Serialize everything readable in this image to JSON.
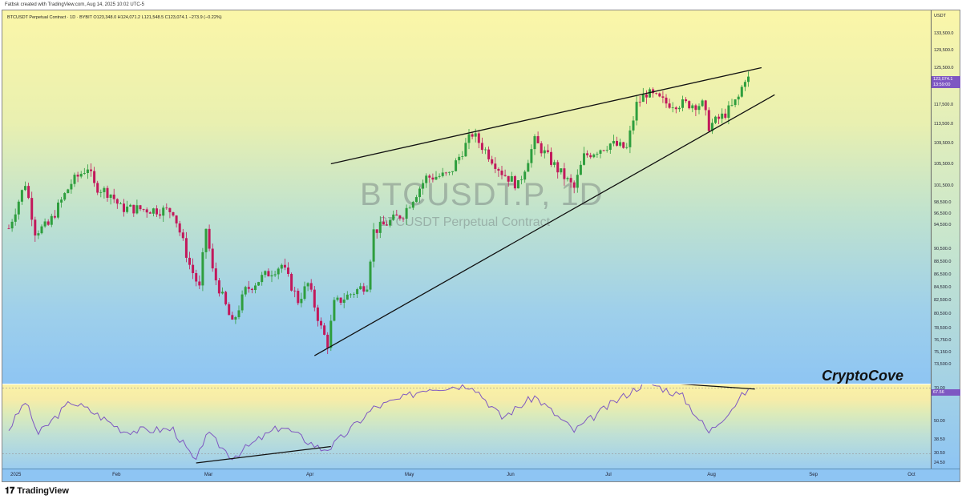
{
  "header": {
    "created": "Fatbsk created with TradingView.com, Aug 14, 2025 10:02 UTC-5"
  },
  "legend": "BTCUSDT Perpetual Contract · 1D · BYBIT  O123,348.0  H124,071.2  L121,548.5  C123,074.1  −273.9 (−0.22%)",
  "watermark": {
    "symbol": "BTCUSDT.P, 1D",
    "name": "BTCUSDT Perpetual Contract"
  },
  "brand": "CryptoCove",
  "footer": "TradingView",
  "colors": {
    "up": "#2e9e3e",
    "down": "#c2185b",
    "rsi": "#7e57c2",
    "badge": "#7e57c2"
  },
  "chart_data": [
    {
      "type": "candlestick",
      "symbol": "BTCUSDT.P",
      "interval": "1D",
      "scale": "log",
      "currency": "USDT",
      "last_price": "123,074.1",
      "countdown": "13:59:00",
      "price_ticks": [
        "133,500.0",
        "129,500.0",
        "125,500.0",
        "117,500.0",
        "113,500.0",
        "109,500.0",
        "105,500.0",
        "101,500.0",
        "98,500.0",
        "96,500.0",
        "94,500.0",
        "90,500.0",
        "88,500.0",
        "86,500.0",
        "84,500.0",
        "82,500.0",
        "80,500.0",
        "78,500.0",
        "76,750.0",
        "75,150.0",
        "73,500.0"
      ],
      "time_ticks": [
        "2025",
        "Feb",
        "Mar",
        "Apr",
        "May",
        "Jun",
        "Jul",
        "Aug",
        "Sep",
        "Oct"
      ],
      "close_path": [
        [
          "2025-01-01",
          94000
        ],
        [
          "2025-01-06",
          102000
        ],
        [
          "2025-01-09",
          93500
        ],
        [
          "2025-01-13",
          94500
        ],
        [
          "2025-01-20",
          102000
        ],
        [
          "2025-01-25",
          105000
        ],
        [
          "2025-01-27",
          101500
        ],
        [
          "2025-02-01",
          100000
        ],
        [
          "2025-02-04",
          97500
        ],
        [
          "2025-02-20",
          97000
        ],
        [
          "2025-02-25",
          88000
        ],
        [
          "2025-02-28",
          84300
        ],
        [
          "2025-03-02",
          94000
        ],
        [
          "2025-03-04",
          87000
        ],
        [
          "2025-03-10",
          79000
        ],
        [
          "2025-03-14",
          84000
        ],
        [
          "2025-03-19",
          86000
        ],
        [
          "2025-03-25",
          88000
        ],
        [
          "2025-03-30",
          82500
        ],
        [
          "2025-04-02",
          85000
        ],
        [
          "2025-04-06",
          78500
        ],
        [
          "2025-04-08",
          76300
        ],
        [
          "2025-04-10",
          82000
        ],
        [
          "2025-04-20",
          85000
        ],
        [
          "2025-04-22",
          93500
        ],
        [
          "2025-05-01",
          96500
        ],
        [
          "2025-05-08",
          103000
        ],
        [
          "2025-05-15",
          103500
        ],
        [
          "2025-05-22",
          111500
        ],
        [
          "2025-05-31",
          104000
        ],
        [
          "2025-06-05",
          101500
        ],
        [
          "2025-06-10",
          110000
        ],
        [
          "2025-06-17",
          104500
        ],
        [
          "2025-06-22",
          101000
        ],
        [
          "2025-06-25",
          107000
        ],
        [
          "2025-07-03",
          109500
        ],
        [
          "2025-07-08",
          108500
        ],
        [
          "2025-07-11",
          117500
        ],
        [
          "2025-07-14",
          120000
        ],
        [
          "2025-07-20",
          117800
        ],
        [
          "2025-07-31",
          117500
        ],
        [
          "2025-08-02",
          113000
        ],
        [
          "2025-08-06",
          115000
        ],
        [
          "2025-08-09",
          117000
        ],
        [
          "2025-08-11",
          119000
        ],
        [
          "2025-08-13",
          123300
        ],
        [
          "2025-08-14",
          123074
        ]
      ],
      "trendlines": [
        {
          "from": [
            "2025-04-09",
            105600
          ],
          "to": [
            "2025-08-18",
            125600
          ]
        },
        {
          "from": [
            "2025-04-04",
            74700
          ],
          "to": [
            "2025-08-22",
            119600
          ]
        }
      ]
    },
    {
      "type": "line",
      "indicator": "RSI",
      "last_value": "67.56",
      "ticks": [
        "70.00",
        "50.00",
        "38.50",
        "30.50",
        "24.50"
      ],
      "path": [
        [
          "2025-01-01",
          45
        ],
        [
          "2025-01-06",
          62
        ],
        [
          "2025-01-10",
          42
        ],
        [
          "2025-01-20",
          62
        ],
        [
          "2025-01-27",
          55
        ],
        [
          "2025-02-05",
          44
        ],
        [
          "2025-02-20",
          45
        ],
        [
          "2025-02-27",
          24.5
        ],
        [
          "2025-03-02",
          43
        ],
        [
          "2025-03-10",
          28
        ],
        [
          "2025-03-19",
          40
        ],
        [
          "2025-03-25",
          47
        ],
        [
          "2025-04-06",
          33
        ],
        [
          "2025-04-09",
          34
        ],
        [
          "2025-04-22",
          58
        ],
        [
          "2025-05-01",
          64
        ],
        [
          "2025-05-08",
          70
        ],
        [
          "2025-05-22",
          72
        ],
        [
          "2025-05-31",
          52
        ],
        [
          "2025-06-10",
          65
        ],
        [
          "2025-06-22",
          44
        ],
        [
          "2025-07-03",
          60
        ],
        [
          "2025-07-14",
          74
        ],
        [
          "2025-07-25",
          65
        ],
        [
          "2025-08-02",
          43
        ],
        [
          "2025-08-09",
          58
        ],
        [
          "2025-08-13",
          67.56
        ],
        [
          "2025-08-14",
          67.56
        ]
      ],
      "trendlines": [
        {
          "from": [
            "2025-02-27",
            24.5
          ],
          "to": [
            "2025-04-09",
            34.5
          ]
        },
        {
          "from": [
            "2025-07-14",
            74
          ],
          "to": [
            "2025-08-16",
            69.5
          ]
        }
      ]
    }
  ]
}
